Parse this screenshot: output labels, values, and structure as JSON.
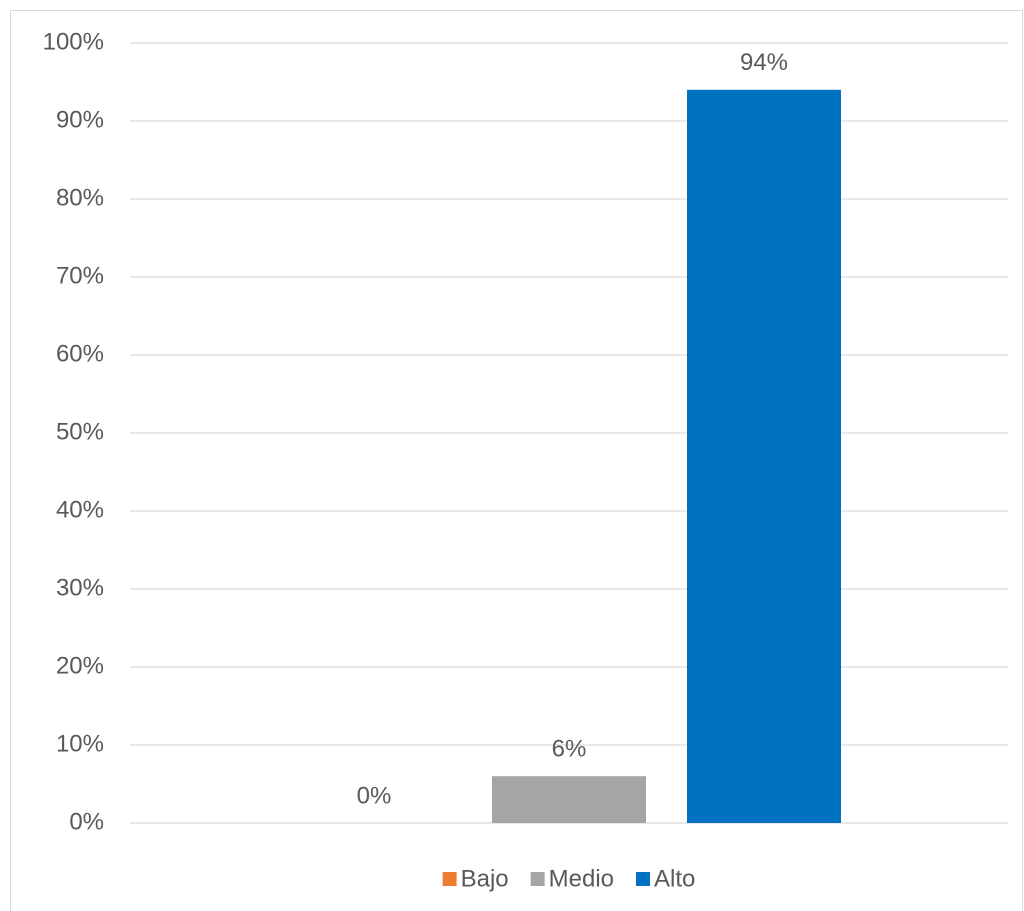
{
  "chart_data": {
    "type": "bar",
    "categories": [
      null
    ],
    "series": [
      {
        "name": "Bajo",
        "color": "#ed7d31",
        "values": [
          0
        ],
        "value_labels": [
          "0%"
        ]
      },
      {
        "name": "Medio",
        "color": "#a5a5a5",
        "values": [
          6
        ],
        "value_labels": [
          "6%"
        ]
      },
      {
        "name": "Alto",
        "color": "#0070c0",
        "values": [
          94
        ],
        "value_labels": [
          "94%"
        ]
      }
    ],
    "ylim": [
      0,
      100
    ],
    "yticks": [
      {
        "value": 0,
        "label": "0%"
      },
      {
        "value": 10,
        "label": "10%"
      },
      {
        "value": 20,
        "label": "20%"
      },
      {
        "value": 30,
        "label": "30%"
      },
      {
        "value": 40,
        "label": "40%"
      },
      {
        "value": 50,
        "label": "50%"
      },
      {
        "value": 60,
        "label": "60%"
      },
      {
        "value": 70,
        "label": "70%"
      },
      {
        "value": 80,
        "label": "80%"
      },
      {
        "value": 90,
        "label": "90%"
      },
      {
        "value": 100,
        "label": "100%"
      }
    ],
    "grid": true,
    "legend": "bottom"
  }
}
